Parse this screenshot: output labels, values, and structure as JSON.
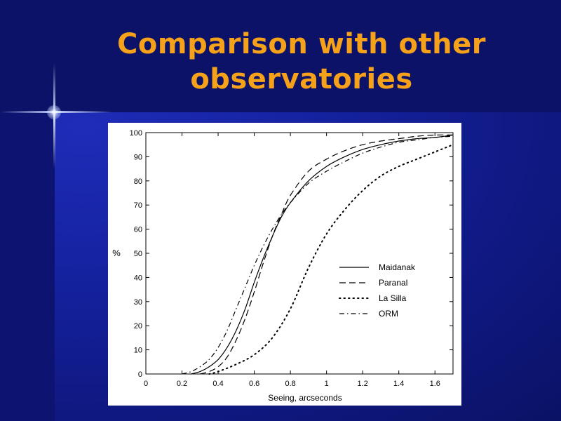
{
  "slide": {
    "title_line1": "Comparison with other",
    "title_line2": "observatories"
  },
  "colors": {
    "title": "#f5a21a",
    "background": "#1522a0",
    "chart_background": "#ffffff",
    "ink": "#000000"
  },
  "chart_data": {
    "type": "line",
    "title": "",
    "xlabel": "Seeing,  arcseconds",
    "ylabel": "%",
    "xlim": [
      0,
      1.7
    ],
    "ylim": [
      0,
      100
    ],
    "xticks": [
      0,
      0.2,
      0.4,
      0.6,
      0.8,
      1,
      1.2,
      1.4,
      1.6
    ],
    "xtick_labels": [
      "0",
      "0.2",
      "0.4",
      "0.6",
      "0.8",
      "1",
      "1.2",
      "1.4",
      "1.6"
    ],
    "yticks": [
      0,
      10,
      20,
      30,
      40,
      50,
      60,
      70,
      80,
      90,
      100
    ],
    "ytick_labels": [
      "0",
      "10",
      "20",
      "30",
      "40",
      "50",
      "60",
      "70",
      "80",
      "90",
      "100"
    ],
    "grid": false,
    "legend_position": "lower-right",
    "series": [
      {
        "name": "Maidanak",
        "style": "solid",
        "x": [
          0.25,
          0.3,
          0.35,
          0.4,
          0.45,
          0.5,
          0.55,
          0.6,
          0.65,
          0.7,
          0.75,
          0.8,
          0.9,
          1.0,
          1.1,
          1.2,
          1.3,
          1.4,
          1.5,
          1.6,
          1.7
        ],
        "y": [
          0,
          1,
          3,
          6,
          11,
          18,
          27,
          38,
          48,
          57,
          65,
          71,
          80,
          86,
          90,
          93,
          95,
          96.5,
          97.5,
          98,
          99
        ]
      },
      {
        "name": "Paranal",
        "style": "dashed",
        "x": [
          0.3,
          0.35,
          0.4,
          0.45,
          0.5,
          0.55,
          0.6,
          0.65,
          0.7,
          0.75,
          0.8,
          0.9,
          1.0,
          1.1,
          1.2,
          1.3,
          1.4,
          1.5,
          1.6,
          1.7
        ],
        "y": [
          0,
          1,
          3,
          7,
          14,
          23,
          34,
          46,
          57,
          66,
          74,
          84,
          89,
          92.5,
          95,
          96.5,
          97.5,
          98.5,
          99,
          99
        ]
      },
      {
        "name": "La Silla",
        "style": "dotted",
        "x": [
          0.35,
          0.4,
          0.5,
          0.6,
          0.7,
          0.8,
          0.9,
          1.0,
          1.1,
          1.2,
          1.3,
          1.4,
          1.5,
          1.6,
          1.7
        ],
        "y": [
          0,
          1,
          4,
          8,
          15,
          27,
          44,
          58,
          68,
          76,
          82,
          86,
          89,
          92,
          95
        ]
      },
      {
        "name": "ORM",
        "style": "dash-dot",
        "x": [
          0.2,
          0.25,
          0.3,
          0.35,
          0.4,
          0.45,
          0.5,
          0.55,
          0.6,
          0.65,
          0.7,
          0.75,
          0.8,
          0.9,
          1.0,
          1.1,
          1.2,
          1.3,
          1.4,
          1.5,
          1.6,
          1.7
        ],
        "y": [
          0,
          1,
          3,
          6,
          11,
          18,
          27,
          36,
          45,
          53,
          60,
          66,
          71,
          79,
          84,
          88,
          91.5,
          94,
          96,
          97,
          98,
          98.5
        ]
      }
    ]
  }
}
